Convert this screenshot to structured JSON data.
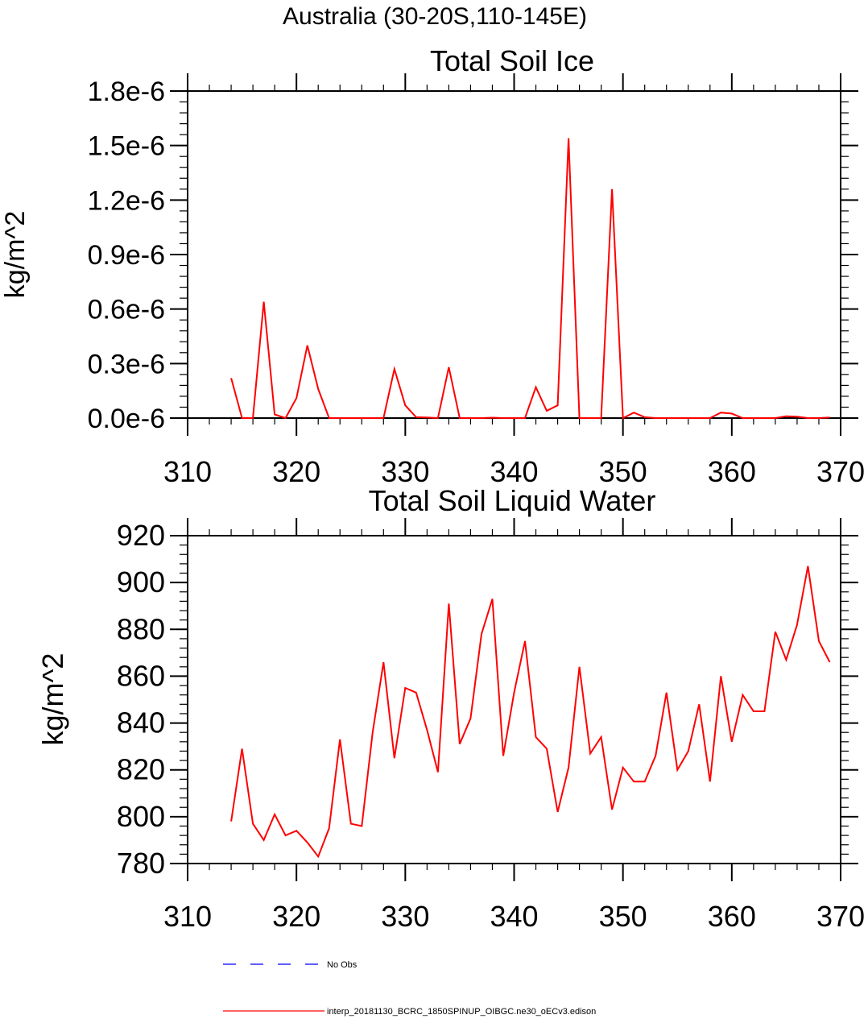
{
  "figure_title": "Australia (30-20S,110-145E)",
  "chart_data": [
    {
      "type": "line",
      "title": "Total Soil Ice",
      "xlabel": "",
      "ylabel": "kg/m^2",
      "xlim": [
        310,
        370
      ],
      "ylim": [
        0,
        1.8
      ],
      "x_ticks": [
        310,
        320,
        330,
        340,
        350,
        360,
        370
      ],
      "x_tick_labels": [
        "310",
        "320",
        "330",
        "340",
        "350",
        "360",
        "370"
      ],
      "y_ticks": [
        0,
        0.3,
        0.6,
        0.9,
        1.2,
        1.5,
        1.8
      ],
      "y_tick_labels": [
        "0.0e-6",
        "0.3e-6",
        "0.6e-6",
        "0.9e-6",
        "1.2e-6",
        "1.5e-6",
        "1.8e-6"
      ],
      "y_unit_scale": "1e-6",
      "grid": false,
      "series": [
        {
          "name": "interp_20181130_BCRC_1850SPINUP_OIBGC.ne30_oECv3.edison",
          "color": "#ff0000",
          "x": [
            314,
            315,
            316,
            317,
            318,
            319,
            320,
            321,
            322,
            323,
            324,
            325,
            326,
            327,
            328,
            329,
            330,
            331,
            332,
            333,
            334,
            335,
            336,
            337,
            338,
            339,
            340,
            341,
            342,
            343,
            344,
            345,
            346,
            347,
            348,
            349,
            350,
            351,
            352,
            353,
            354,
            355,
            356,
            357,
            358,
            359,
            360,
            361,
            362,
            363,
            364,
            365,
            366,
            367,
            368,
            369
          ],
          "values": [
            0.22,
            0,
            0,
            0.64,
            0.02,
            0,
            0.11,
            0.4,
            0.16,
            0,
            0,
            0,
            0,
            0,
            0,
            0.27,
            0.07,
            0.005,
            0.003,
            0,
            0.28,
            0,
            0,
            0,
            0.002,
            0,
            0,
            0,
            0.17,
            0.04,
            0.07,
            1.54,
            0,
            0,
            0,
            1.26,
            0,
            0.03,
            0.005,
            0,
            0,
            0,
            0,
            0,
            0,
            0.03,
            0.025,
            0,
            0,
            0,
            0,
            0.01,
            0.008,
            0,
            0,
            0.003
          ]
        }
      ]
    },
    {
      "type": "line",
      "title": "Total Soil Liquid Water",
      "xlabel": "",
      "ylabel": "kg/m^2",
      "xlim": [
        310,
        370
      ],
      "ylim": [
        780,
        920
      ],
      "x_ticks": [
        310,
        320,
        330,
        340,
        350,
        360,
        370
      ],
      "x_tick_labels": [
        "310",
        "320",
        "330",
        "340",
        "350",
        "360",
        "370"
      ],
      "y_ticks": [
        780,
        800,
        820,
        840,
        860,
        880,
        900,
        920
      ],
      "y_tick_labels": [
        "780",
        "800",
        "820",
        "840",
        "860",
        "880",
        "900",
        "920"
      ],
      "grid": false,
      "series": [
        {
          "name": "interp_20181130_BCRC_1850SPINUP_OIBGC.ne30_oECv3.edison",
          "color": "#ff0000",
          "x": [
            314,
            315,
            316,
            317,
            318,
            319,
            320,
            321,
            322,
            323,
            324,
            325,
            326,
            327,
            328,
            329,
            330,
            331,
            332,
            333,
            334,
            335,
            336,
            337,
            338,
            339,
            340,
            341,
            342,
            343,
            344,
            345,
            346,
            347,
            348,
            349,
            350,
            351,
            352,
            353,
            354,
            355,
            356,
            357,
            358,
            359,
            360,
            361,
            362,
            363,
            364,
            365,
            366,
            367,
            368,
            369
          ],
          "values": [
            798,
            829,
            797,
            790,
            801,
            792,
            794,
            789,
            783,
            795,
            833,
            797,
            796,
            836,
            866,
            825,
            855,
            853,
            837,
            819,
            891,
            831,
            842,
            878,
            893,
            826,
            853,
            875,
            834,
            829,
            802,
            821,
            864,
            827,
            834,
            803,
            821,
            815,
            815,
            826,
            853,
            820,
            828,
            848,
            815,
            860,
            832,
            852,
            845,
            845,
            879,
            867,
            882,
            907,
            875,
            866
          ]
        }
      ]
    }
  ],
  "legend": [
    {
      "label": "No Obs",
      "color": "#0000ff",
      "style": "dashed"
    },
    {
      "label": "interp_20181130_BCRC_1850SPINUP_OIBGC.ne30_oECv3.edison",
      "color": "#ff0000",
      "style": "solid"
    }
  ]
}
